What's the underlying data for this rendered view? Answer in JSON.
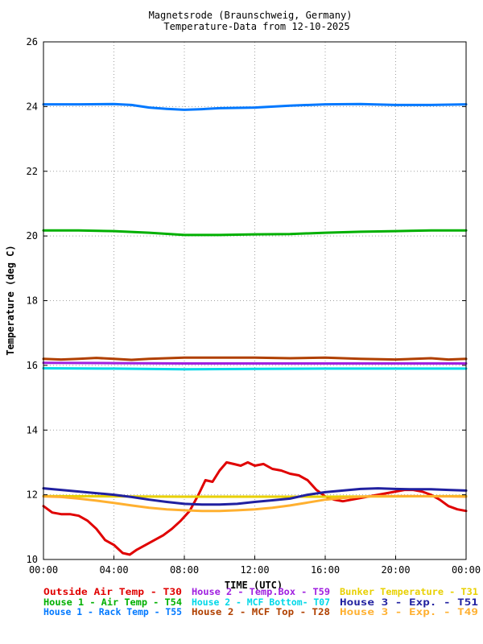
{
  "chart_data": {
    "type": "line",
    "title": "Magnetsrode (Braunschweig, Germany)",
    "subtitle": "Temperature-Data from 12-10-2025",
    "xlabel": "TIME (UTC)",
    "ylabel": "Temperature (deg C)",
    "xlim": [
      0,
      24
    ],
    "ylim": [
      10,
      26
    ],
    "xticks": [
      {
        "v": 0,
        "label": "00:00"
      },
      {
        "v": 4,
        "label": "04:00"
      },
      {
        "v": 8,
        "label": "08:00"
      },
      {
        "v": 12,
        "label": "12:00"
      },
      {
        "v": 16,
        "label": "16:00"
      },
      {
        "v": 20,
        "label": "20:00"
      },
      {
        "v": 24,
        "label": "00:00"
      }
    ],
    "yticks": [
      {
        "v": 10,
        "label": "10"
      },
      {
        "v": 12,
        "label": "12"
      },
      {
        "v": 14,
        "label": "14"
      },
      {
        "v": 16,
        "label": "16"
      },
      {
        "v": 18,
        "label": "18"
      },
      {
        "v": 20,
        "label": "20"
      },
      {
        "v": 22,
        "label": "22"
      },
      {
        "v": 24,
        "label": "24"
      },
      {
        "v": 26,
        "label": "26"
      }
    ],
    "grid": true,
    "legend_position": "bottom",
    "series": [
      {
        "id": "T30",
        "legend": "Outside Air Temp    - T30",
        "color": "#e00000",
        "x": [
          0,
          0.5,
          1,
          1.5,
          2,
          2.5,
          3,
          3.5,
          4,
          4.5,
          4.9,
          5.3,
          5.8,
          6.3,
          6.8,
          7.3,
          7.8,
          8.3,
          8.8,
          9.2,
          9.6,
          10,
          10.4,
          10.8,
          11.2,
          11.6,
          12,
          12.5,
          13,
          13.5,
          14,
          14.5,
          15,
          15.5,
          16,
          16.5,
          17,
          17.5,
          18,
          18.5,
          19,
          19.5,
          20,
          20.5,
          21,
          21.5,
          22,
          22.5,
          23,
          23.5,
          24
        ],
        "y": [
          11.65,
          11.45,
          11.4,
          11.4,
          11.35,
          11.2,
          10.95,
          10.6,
          10.45,
          10.2,
          10.15,
          10.3,
          10.45,
          10.6,
          10.75,
          10.95,
          11.2,
          11.5,
          12.0,
          12.45,
          12.4,
          12.75,
          13.0,
          12.95,
          12.9,
          13.0,
          12.9,
          12.95,
          12.8,
          12.75,
          12.65,
          12.6,
          12.45,
          12.15,
          11.95,
          11.85,
          11.8,
          11.85,
          11.9,
          11.95,
          12.0,
          12.05,
          12.1,
          12.15,
          12.15,
          12.1,
          12.0,
          11.85,
          11.65,
          11.55,
          11.5
        ]
      },
      {
        "id": "T54",
        "legend": "House 1 - Air  Temp - T54",
        "color": "#00b000",
        "x": [
          0,
          2,
          4,
          6,
          8,
          10,
          12,
          14,
          16,
          18,
          20,
          22,
          24
        ],
        "y": [
          20.17,
          20.17,
          20.15,
          20.1,
          20.03,
          20.03,
          20.05,
          20.06,
          20.1,
          20.13,
          20.15,
          20.17,
          20.17
        ]
      },
      {
        "id": "T55",
        "legend": "House 1 - Rack Temp - T55",
        "color": "#0078ff",
        "x": [
          0,
          2,
          4,
          5,
          6,
          7,
          8,
          9,
          10,
          12,
          14,
          16,
          18,
          20,
          22,
          24
        ],
        "y": [
          24.07,
          24.07,
          24.08,
          24.05,
          23.97,
          23.93,
          23.9,
          23.92,
          23.95,
          23.97,
          24.03,
          24.07,
          24.08,
          24.05,
          24.05,
          24.07
        ]
      },
      {
        "id": "T59",
        "legend": "House 2 - Temp.Box  - T59",
        "color": "#a020e0",
        "x": [
          0,
          4,
          8,
          12,
          16,
          20,
          24
        ],
        "y": [
          16.08,
          16.07,
          16.06,
          16.06,
          16.06,
          16.06,
          16.06
        ]
      },
      {
        "id": "T07",
        "legend": "House 2 - MCF Bottom- T07",
        "color": "#00d8e8",
        "x": [
          0,
          4,
          8,
          12,
          16,
          20,
          24
        ],
        "y": [
          15.91,
          15.9,
          15.88,
          15.89,
          15.9,
          15.9,
          15.9
        ]
      },
      {
        "id": "T28",
        "legend": "House 2 - MCF Top    - T28",
        "color": "#b04000",
        "x": [
          0,
          1,
          2,
          3,
          4,
          5,
          6,
          8,
          10,
          12,
          14,
          16,
          18,
          20,
          22,
          23,
          24
        ],
        "y": [
          16.2,
          16.18,
          16.2,
          16.23,
          16.2,
          16.17,
          16.2,
          16.24,
          16.24,
          16.24,
          16.22,
          16.24,
          16.2,
          16.18,
          16.22,
          16.18,
          16.2
        ]
      },
      {
        "id": "T31",
        "legend": "Bunker Temperature  - T31",
        "color": "#e8d000",
        "x": [
          0,
          4,
          8,
          12,
          16,
          20,
          24
        ],
        "y": [
          11.96,
          11.95,
          11.94,
          11.94,
          11.94,
          11.95,
          11.96
        ]
      },
      {
        "id": "T51",
        "legend": "House 3 - Exp.      - T51",
        "color": "#2020a0",
        "x": [
          0,
          1,
          2,
          3,
          4,
          5,
          6,
          7,
          8,
          9,
          10,
          11,
          12,
          13,
          14,
          15,
          16,
          17,
          18,
          19,
          20,
          21,
          22,
          23,
          24
        ],
        "y": [
          12.2,
          12.15,
          12.1,
          12.05,
          12.0,
          11.93,
          11.85,
          11.78,
          11.72,
          11.7,
          11.7,
          11.72,
          11.78,
          11.83,
          11.88,
          12.0,
          12.08,
          12.13,
          12.18,
          12.2,
          12.18,
          12.17,
          12.17,
          12.15,
          12.13
        ]
      },
      {
        "id": "T49",
        "legend": "House 3 - Exp.      - T49",
        "color": "#ffb030",
        "x": [
          0,
          1,
          2,
          3,
          4,
          5,
          6,
          7,
          8,
          9,
          10,
          11,
          12,
          13,
          14,
          15,
          16,
          17,
          18,
          19,
          20,
          21,
          22,
          23,
          24
        ],
        "y": [
          11.95,
          11.93,
          11.88,
          11.82,
          11.75,
          11.67,
          11.6,
          11.55,
          11.52,
          11.5,
          11.5,
          11.52,
          11.55,
          11.6,
          11.67,
          11.76,
          11.85,
          11.9,
          11.94,
          11.96,
          11.96,
          11.96,
          11.95,
          11.95,
          11.94
        ]
      }
    ]
  }
}
